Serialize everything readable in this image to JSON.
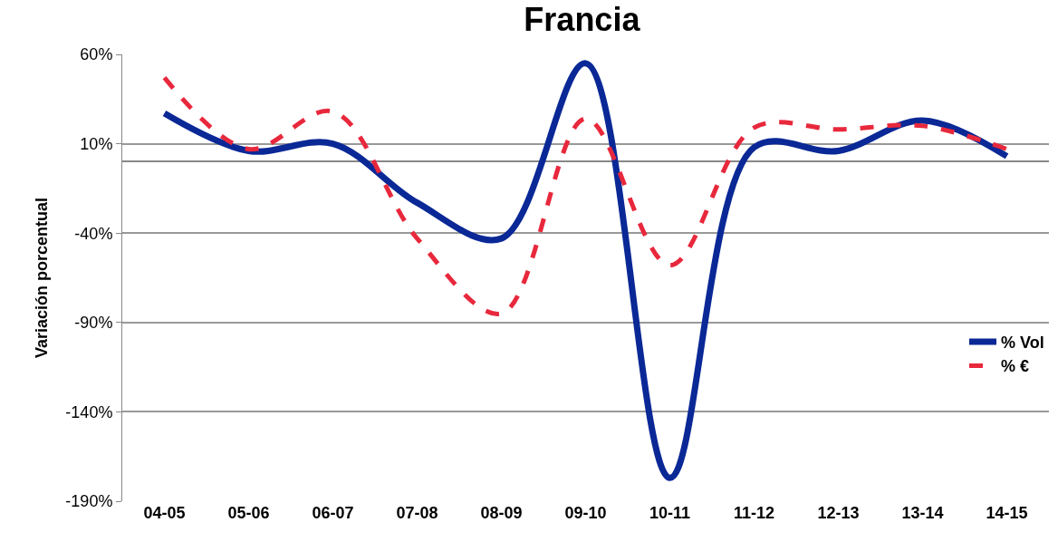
{
  "chart_data": {
    "type": "line",
    "title": "Francia",
    "ylabel": "Variación porcentual",
    "categories": [
      "04-05",
      "05-06",
      "06-07",
      "07-08",
      "08-09",
      "09-10",
      "10-11",
      "11-12",
      "12-13",
      "13-14",
      "14-15"
    ],
    "series": [
      {
        "name": "% Vol",
        "color": "#0a2896",
        "line_style": "solid",
        "values": [
          27,
          6,
          10,
          -23,
          -43,
          55,
          -177,
          8,
          6,
          23,
          3
        ]
      },
      {
        "name": "% €",
        "color": "#e8283c",
        "line_style": "dashed",
        "values": [
          47,
          7,
          28,
          -43,
          -85,
          24,
          -58,
          19,
          18,
          20,
          7
        ]
      }
    ],
    "ylim": [
      -190,
      60
    ],
    "yticks": [
      {
        "value": 60,
        "label": "60%"
      },
      {
        "value": 10,
        "label": "10%"
      },
      {
        "value": -40,
        "label": "-40%"
      },
      {
        "value": -90,
        "label": "-90%"
      },
      {
        "value": -140,
        "label": "-140%"
      },
      {
        "value": -190,
        "label": "-190%"
      }
    ],
    "grid": "y",
    "legend": "right",
    "marker": "none"
  }
}
